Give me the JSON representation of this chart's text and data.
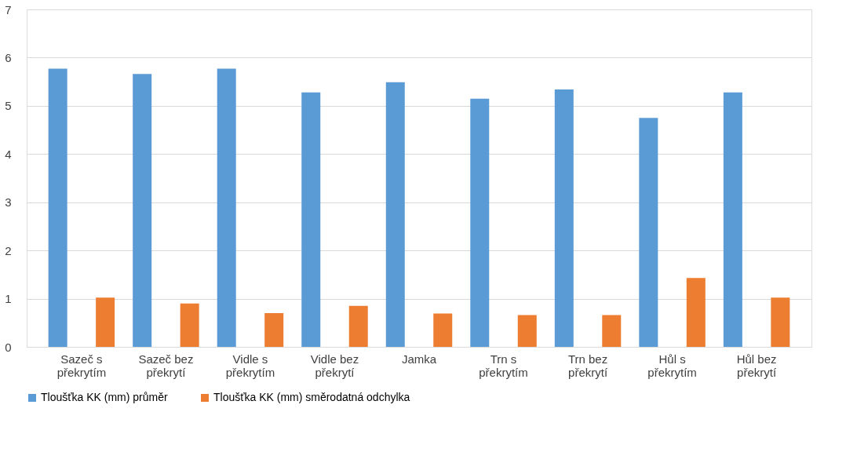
{
  "chart_data": {
    "type": "bar",
    "categories": [
      "Sazeč s překrytím",
      "Sazeč bez překrytí",
      "Vidle s překrytím",
      "Vidle bez překrytí",
      "Jamka",
      "Trn s překrytím",
      "Trn bez překrytí",
      "Hůl s překrytím",
      "Hůl bez překrytí"
    ],
    "series": [
      {
        "name": "Tloušťka KK (mm) průměr",
        "color": "#5b9bd5",
        "values": [
          5.77,
          5.66,
          5.77,
          5.28,
          5.49,
          5.15,
          5.34,
          4.75,
          5.28
        ]
      },
      {
        "name": "Tloušťka KK (mm) směrodatná odchylka",
        "color": "#ed7d31",
        "values": [
          1.02,
          0.9,
          0.7,
          0.85,
          0.69,
          0.66,
          0.66,
          1.43,
          1.02
        ]
      }
    ],
    "ylim": [
      0,
      7
    ],
    "yticks": [
      0,
      1,
      2,
      3,
      4,
      5,
      6,
      7
    ],
    "grid": "y",
    "legend": "bottom"
  }
}
